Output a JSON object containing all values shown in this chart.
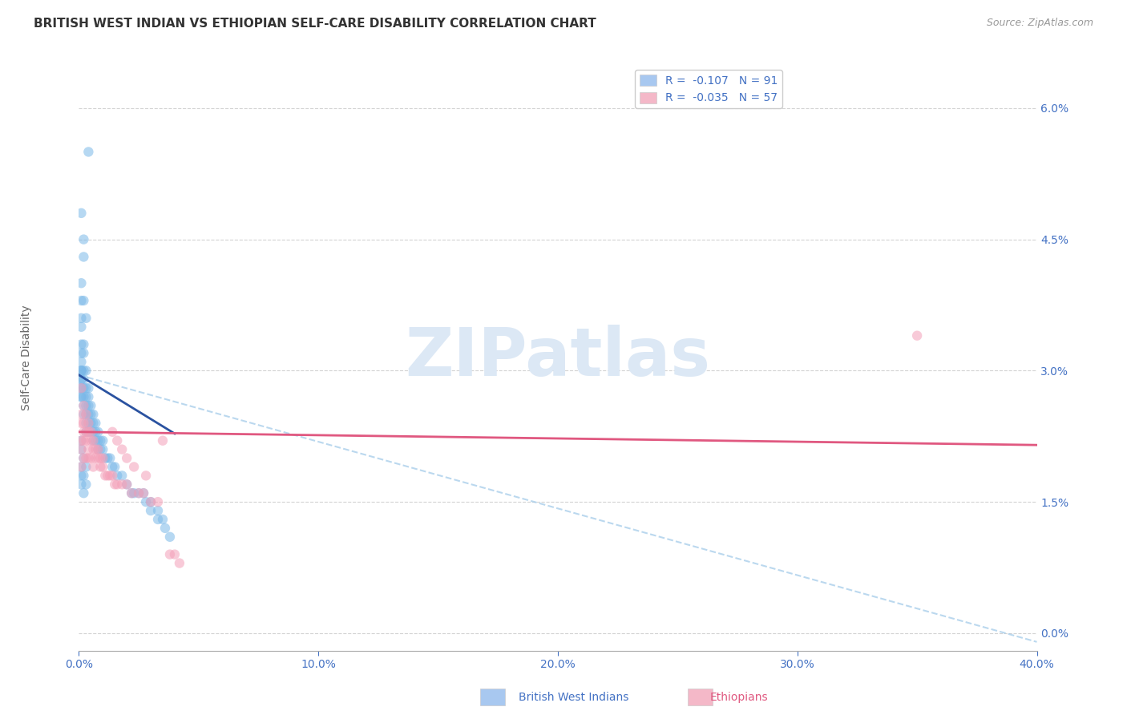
{
  "title": "BRITISH WEST INDIAN VS ETHIOPIAN SELF-CARE DISABILITY CORRELATION CHART",
  "source_text": "Source: ZipAtlas.com",
  "ylabel": "Self-Care Disability",
  "xlim": [
    0.0,
    0.4
  ],
  "ylim": [
    -0.002,
    0.065
  ],
  "xticks": [
    0.0,
    0.1,
    0.2,
    0.3,
    0.4
  ],
  "xtick_labels": [
    "0.0%",
    "10.0%",
    "20.0%",
    "30.0%",
    "40.0%"
  ],
  "yticks_right": [
    0.0,
    0.015,
    0.03,
    0.045,
    0.06
  ],
  "ytick_labels_right": [
    "0.0%",
    "1.5%",
    "3.0%",
    "4.5%",
    "6.0%"
  ],
  "watermark_text": "ZIPatlas",
  "axis_color": "#4472c4",
  "dot_alpha": 0.55,
  "dot_size": 80,
  "bg_color": "#ffffff",
  "grid_color": "#c8c8c8",
  "watermark_color": "#dce8f5",
  "watermark_fontsize": 60,
  "title_fontsize": 11,
  "blue_scatter_x": [
    0.004,
    0.001,
    0.002,
    0.002,
    0.001,
    0.001,
    0.002,
    0.001,
    0.003,
    0.001,
    0.001,
    0.001,
    0.001,
    0.001,
    0.001,
    0.001,
    0.001,
    0.001,
    0.001,
    0.001,
    0.001,
    0.001,
    0.002,
    0.002,
    0.002,
    0.002,
    0.002,
    0.002,
    0.002,
    0.002,
    0.003,
    0.003,
    0.003,
    0.003,
    0.003,
    0.003,
    0.003,
    0.004,
    0.004,
    0.004,
    0.004,
    0.004,
    0.004,
    0.005,
    0.005,
    0.005,
    0.005,
    0.006,
    0.006,
    0.006,
    0.006,
    0.007,
    0.007,
    0.007,
    0.008,
    0.008,
    0.008,
    0.009,
    0.009,
    0.01,
    0.01,
    0.011,
    0.012,
    0.013,
    0.014,
    0.015,
    0.016,
    0.018,
    0.02,
    0.022,
    0.023,
    0.025,
    0.027,
    0.028,
    0.03,
    0.03,
    0.033,
    0.033,
    0.035,
    0.036,
    0.038,
    0.001,
    0.001,
    0.001,
    0.001,
    0.001,
    0.002,
    0.002,
    0.002,
    0.003,
    0.003
  ],
  "blue_scatter_y": [
    0.055,
    0.048,
    0.045,
    0.043,
    0.04,
    0.038,
    0.038,
    0.036,
    0.036,
    0.035,
    0.033,
    0.032,
    0.031,
    0.03,
    0.03,
    0.03,
    0.029,
    0.029,
    0.028,
    0.028,
    0.027,
    0.027,
    0.033,
    0.032,
    0.03,
    0.029,
    0.028,
    0.027,
    0.026,
    0.025,
    0.03,
    0.028,
    0.027,
    0.026,
    0.025,
    0.024,
    0.023,
    0.028,
    0.027,
    0.026,
    0.025,
    0.024,
    0.023,
    0.026,
    0.025,
    0.024,
    0.023,
    0.025,
    0.024,
    0.023,
    0.022,
    0.024,
    0.023,
    0.022,
    0.023,
    0.022,
    0.021,
    0.022,
    0.021,
    0.022,
    0.021,
    0.02,
    0.02,
    0.02,
    0.019,
    0.019,
    0.018,
    0.018,
    0.017,
    0.016,
    0.016,
    0.016,
    0.016,
    0.015,
    0.015,
    0.014,
    0.014,
    0.013,
    0.013,
    0.012,
    0.011,
    0.022,
    0.021,
    0.019,
    0.018,
    0.017,
    0.02,
    0.018,
    0.016,
    0.019,
    0.017
  ],
  "pink_scatter_x": [
    0.001,
    0.001,
    0.001,
    0.001,
    0.001,
    0.001,
    0.002,
    0.002,
    0.002,
    0.002,
    0.002,
    0.003,
    0.003,
    0.003,
    0.003,
    0.004,
    0.004,
    0.004,
    0.004,
    0.005,
    0.005,
    0.005,
    0.006,
    0.006,
    0.006,
    0.007,
    0.007,
    0.008,
    0.008,
    0.009,
    0.009,
    0.01,
    0.01,
    0.011,
    0.012,
    0.013,
    0.014,
    0.015,
    0.016,
    0.018,
    0.02,
    0.022,
    0.025,
    0.027,
    0.03,
    0.033,
    0.035,
    0.038,
    0.35,
    0.04,
    0.042,
    0.014,
    0.016,
    0.018,
    0.02,
    0.023,
    0.028
  ],
  "pink_scatter_y": [
    0.028,
    0.025,
    0.024,
    0.022,
    0.021,
    0.019,
    0.026,
    0.024,
    0.023,
    0.022,
    0.02,
    0.025,
    0.023,
    0.022,
    0.02,
    0.024,
    0.023,
    0.021,
    0.02,
    0.023,
    0.022,
    0.02,
    0.022,
    0.021,
    0.019,
    0.021,
    0.02,
    0.021,
    0.02,
    0.02,
    0.019,
    0.02,
    0.019,
    0.018,
    0.018,
    0.018,
    0.018,
    0.017,
    0.017,
    0.017,
    0.017,
    0.016,
    0.016,
    0.016,
    0.015,
    0.015,
    0.022,
    0.009,
    0.034,
    0.009,
    0.008,
    0.023,
    0.022,
    0.021,
    0.02,
    0.019,
    0.018
  ],
  "blue_line_x": [
    0.0,
    0.04
  ],
  "blue_line_y": [
    0.0295,
    0.0228
  ],
  "pink_line_x": [
    0.0,
    0.4
  ],
  "pink_line_y": [
    0.023,
    0.0215
  ],
  "dashed_line_x": [
    0.0,
    0.4
  ],
  "dashed_line_y": [
    0.0295,
    -0.001
  ],
  "legend_label1": "R =  -0.107   N = 91",
  "legend_label2": "R =  -0.035   N = 57",
  "legend_color1": "#a8c8f0",
  "legend_color2": "#f4b8c8",
  "dot_color_blue": "#7ab8e8",
  "dot_color_pink": "#f4a0b8"
}
